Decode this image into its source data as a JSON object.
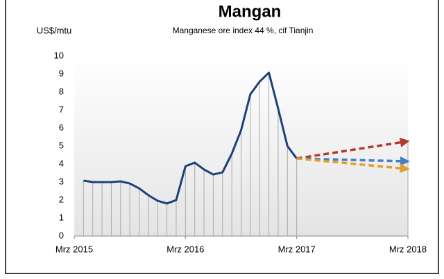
{
  "chart_data": {
    "type": "line",
    "title": "Mangan",
    "subtitle": "Manganese ore index 44 %, cif Tianjin",
    "y_label": "US$/mtu",
    "x": [
      "2015-04",
      "2015-05",
      "2015-06",
      "2015-07",
      "2015-08",
      "2015-09",
      "2015-10",
      "2015-11",
      "2015-12",
      "2016-01",
      "2016-02",
      "2016-03",
      "2016-04",
      "2016-05",
      "2016-06",
      "2016-07",
      "2016-08",
      "2016-09",
      "2016-10",
      "2016-11",
      "2016-12",
      "2017-01",
      "2017-02",
      "2017-03"
    ],
    "series": [
      {
        "color": "#1f3f7a",
        "values": [
          3.08,
          3.0,
          3.0,
          3.0,
          3.04,
          2.92,
          2.65,
          2.27,
          1.96,
          1.81,
          2.0,
          3.88,
          4.08,
          3.7,
          3.42,
          3.54,
          4.58,
          5.88,
          7.88,
          8.58,
          9.08,
          7.08,
          5.0,
          4.31
        ]
      }
    ],
    "forecasts": [
      {
        "color": "#b03a2e",
        "x": [
          "2017-03",
          "2018-03"
        ],
        "values": [
          4.31,
          5.27
        ]
      },
      {
        "color": "#4a7cc0",
        "x": [
          "2017-03",
          "2018-03"
        ],
        "values": [
          4.31,
          4.15
        ]
      },
      {
        "color": "#e0a030",
        "x": [
          "2017-03",
          "2018-03"
        ],
        "values": [
          4.31,
          3.73
        ]
      }
    ],
    "xlim": [
      "2015-03",
      "2018-03"
    ],
    "xticks": [
      {
        "value": "2015-03",
        "label": "Mrz 2015"
      },
      {
        "value": "2016-03",
        "label": "Mrz 2016"
      },
      {
        "value": "2017-03",
        "label": "Mrz 2017"
      },
      {
        "value": "2018-03",
        "label": "Mrz 2018"
      }
    ],
    "ylim": [
      0,
      10
    ],
    "yticks": [
      0,
      1,
      2,
      3,
      4,
      5,
      6,
      7,
      8,
      9,
      10
    ],
    "grid": false
  }
}
